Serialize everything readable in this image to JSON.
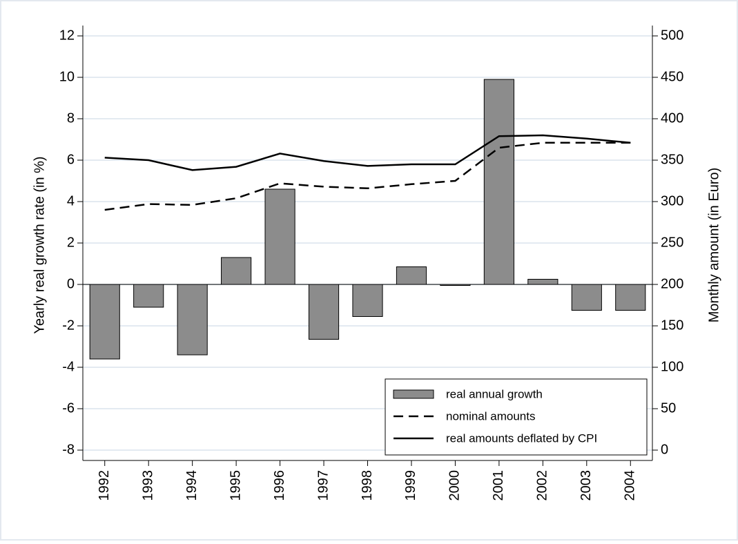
{
  "chart_data": {
    "type": "bar",
    "categories": [
      "1992",
      "1993",
      "1994",
      "1995",
      "1996",
      "1997",
      "1998",
      "1999",
      "2000",
      "2001",
      "2002",
      "2003",
      "2004"
    ],
    "y_label": "Yearly real growth rate (in %)",
    "y2_label": "Monthly amount (in Euro)",
    "series": [
      {
        "name": "real annual growth",
        "type": "bar",
        "axis": "y",
        "color": "#8c8c8c",
        "values": [
          -3.6,
          -1.1,
          -3.4,
          1.3,
          4.6,
          -2.65,
          -1.55,
          0.85,
          -0.05,
          9.9,
          0.25,
          -1.25,
          -1.25
        ]
      },
      {
        "name": "nominal amounts",
        "type": "line",
        "axis": "y2",
        "color": "#000000",
        "linestyle": "dashed",
        "values": [
          290,
          297,
          296,
          304,
          322,
          318,
          316,
          321,
          325,
          365,
          371,
          371,
          371
        ]
      },
      {
        "name": "real amounts deflated by CPI",
        "type": "line",
        "axis": "y2",
        "color": "#000000",
        "linestyle": "solid",
        "values": [
          353,
          350,
          338,
          342,
          358,
          349,
          343,
          345,
          345,
          379,
          380,
          376,
          371
        ]
      }
    ],
    "ylim": [
      -8.5,
      12.5
    ],
    "yticks": [
      -8,
      -6,
      -4,
      -2,
      0,
      2,
      4,
      6,
      8,
      10,
      12
    ],
    "y2lim": [
      -12.5,
      512.5
    ],
    "y2ticks": [
      0,
      50,
      100,
      150,
      200,
      250,
      300,
      350,
      400,
      450,
      500
    ],
    "grid": true,
    "legend": "lower right"
  }
}
